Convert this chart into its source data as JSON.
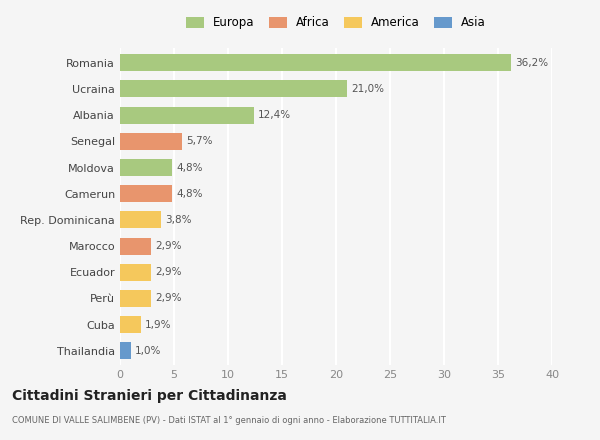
{
  "countries": [
    "Romania",
    "Ucraina",
    "Albania",
    "Senegal",
    "Moldova",
    "Camerun",
    "Rep. Dominicana",
    "Marocco",
    "Ecuador",
    "Perù",
    "Cuba",
    "Thailandia"
  ],
  "values": [
    36.2,
    21.0,
    12.4,
    5.7,
    4.8,
    4.8,
    3.8,
    2.9,
    2.9,
    2.9,
    1.9,
    1.0
  ],
  "labels": [
    "36,2%",
    "21,0%",
    "12,4%",
    "5,7%",
    "4,8%",
    "4,8%",
    "3,8%",
    "2,9%",
    "2,9%",
    "2,9%",
    "1,9%",
    "1,0%"
  ],
  "colors": [
    "#a8c97f",
    "#a8c97f",
    "#a8c97f",
    "#e8956d",
    "#a8c97f",
    "#e8956d",
    "#f5c85c",
    "#e8956d",
    "#f5c85c",
    "#f5c85c",
    "#f5c85c",
    "#6699cc"
  ],
  "legend_labels": [
    "Europa",
    "Africa",
    "America",
    "Asia"
  ],
  "legend_colors": [
    "#a8c97f",
    "#e8956d",
    "#f5c85c",
    "#6699cc"
  ],
  "title": "Cittadini Stranieri per Cittadinanza",
  "subtitle": "COMUNE DI VALLE SALIMBENE (PV) - Dati ISTAT al 1° gennaio di ogni anno - Elaborazione TUTTITALIA.IT",
  "xlim": [
    0,
    40
  ],
  "xticks": [
    0,
    5,
    10,
    15,
    20,
    25,
    30,
    35,
    40
  ],
  "background_color": "#f5f5f5",
  "grid_color": "#ffffff",
  "bar_height": 0.65
}
